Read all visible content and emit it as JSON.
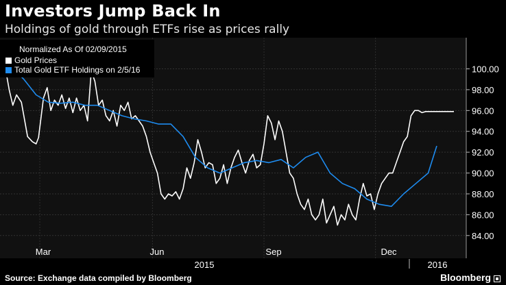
{
  "header": {
    "title": "Investors Jump Back In",
    "subtitle": "Holdings of gold through ETFs rise as prices rally"
  },
  "footer": {
    "source": "Source: Exchange data compiled by Bloomberg",
    "brand": "Bloomberg"
  },
  "colors": {
    "background": "#000000",
    "plot_background": "#111111",
    "gold_line": "#ffffff",
    "etf_line": "#1e8cf0",
    "grid": "#2e2e2e"
  },
  "chart_data": {
    "type": "line",
    "legend_note": "Normalized As Of 02/09/2015",
    "legend_position": "top-left",
    "x_ticks": [
      "Mar",
      "Jun",
      "Sep",
      "Dec"
    ],
    "x_years": [
      "2015",
      "2016"
    ],
    "x_range": [
      0,
      366
    ],
    "yticks": [
      "84.00",
      "86.00",
      "88.00",
      "90.00",
      "92.00",
      "94.00",
      "96.00",
      "98.00",
      "100.00"
    ],
    "ylim": [
      83,
      102.4
    ],
    "y_axis_side": "right",
    "grid": true,
    "series": [
      {
        "name": "Gold Prices",
        "color": "#ffffff",
        "x": [
          0,
          3,
          6,
          9,
          13,
          18,
          22,
          25,
          27,
          31,
          34,
          37,
          40,
          43,
          46,
          49,
          52,
          55,
          58,
          61,
          64,
          67,
          70,
          73,
          76,
          79,
          82,
          85,
          88,
          91,
          94,
          97,
          100,
          103,
          106,
          109,
          112,
          115,
          118,
          121,
          124,
          127,
          130,
          133,
          136,
          139,
          142,
          145,
          148,
          151,
          154,
          157,
          160,
          163,
          166,
          169,
          172,
          175,
          178,
          181,
          184,
          187,
          190,
          193,
          196,
          199,
          202,
          205,
          208,
          211,
          214,
          217,
          220,
          223,
          226,
          229,
          232,
          235,
          238,
          241,
          244,
          247,
          250,
          253,
          256,
          259,
          262,
          265,
          268,
          271,
          274,
          277,
          280,
          283,
          286,
          289,
          292,
          295,
          298,
          301,
          304,
          307,
          310,
          313,
          316,
          319,
          322,
          325,
          328,
          331,
          334,
          337,
          340,
          343,
          346,
          349,
          352,
          355,
          358,
          361,
          363,
          366
        ],
        "values": [
          100,
          98.0,
          96.5,
          97.5,
          96.8,
          93.5,
          93.0,
          92.8,
          93.4,
          97.2,
          98.2,
          96.0,
          97.0,
          96.5,
          97.5,
          96.2,
          97.2,
          95.8,
          97.2,
          96.0,
          96.5,
          95.0,
          99.8,
          98.8,
          96.5,
          97.0,
          95.5,
          95.0,
          96.0,
          94.5,
          96.5,
          96.0,
          96.8,
          95.2,
          95.5,
          95.0,
          94.5,
          93.5,
          92.0,
          91.0,
          90.0,
          88.0,
          87.5,
          88.0,
          87.8,
          88.2,
          87.5,
          88.5,
          90.5,
          89.5,
          91.0,
          93.2,
          92.0,
          90.5,
          91.0,
          90.8,
          89.0,
          89.5,
          90.8,
          89.0,
          90.5,
          91.5,
          92.2,
          91.0,
          90.0,
          91.2,
          91.8,
          90.5,
          90.8,
          92.8,
          95.5,
          94.8,
          93.2,
          95.0,
          94.0,
          92.0,
          90.0,
          89.5,
          88.0,
          87.0,
          86.5,
          87.5,
          86.0,
          85.5,
          86.0,
          87.5,
          85.2,
          86.0,
          86.8,
          85.0,
          86.0,
          85.5,
          87.0,
          86.0,
          85.5,
          87.5,
          89.0,
          87.8,
          88.0,
          86.5,
          88.0,
          89.0,
          89.5,
          90.0,
          90.0,
          91.0,
          92.0,
          93.0,
          93.5,
          95.5,
          96.0,
          96.0,
          95.8,
          95.9,
          95.9,
          95.9,
          95.9,
          95.9,
          95.9,
          95.9,
          95.9,
          95.9
        ]
      },
      {
        "name": "Total Gold ETF Holdings on 2/5/16",
        "color": "#1e8cf0",
        "x": [
          0,
          8,
          15,
          25,
          35,
          45,
          55,
          65,
          75,
          85,
          95,
          105,
          115,
          125,
          135,
          145,
          155,
          165,
          175,
          185,
          195,
          205,
          215,
          225,
          235,
          245,
          255,
          265,
          275,
          285,
          295,
          305,
          315,
          325,
          335,
          345,
          352
        ],
        "values": [
          100,
          99.8,
          99.0,
          97.5,
          96.8,
          96.7,
          96.8,
          96.5,
          96.5,
          96.0,
          95.5,
          95.2,
          95.0,
          94.7,
          94.7,
          93.5,
          91.5,
          90.5,
          90.0,
          90.5,
          91.0,
          91.2,
          91.0,
          91.3,
          90.5,
          91.5,
          92.0,
          90.0,
          89.0,
          88.5,
          87.5,
          87.0,
          86.8,
          88.0,
          89.0,
          90.0,
          92.6
        ]
      }
    ]
  }
}
